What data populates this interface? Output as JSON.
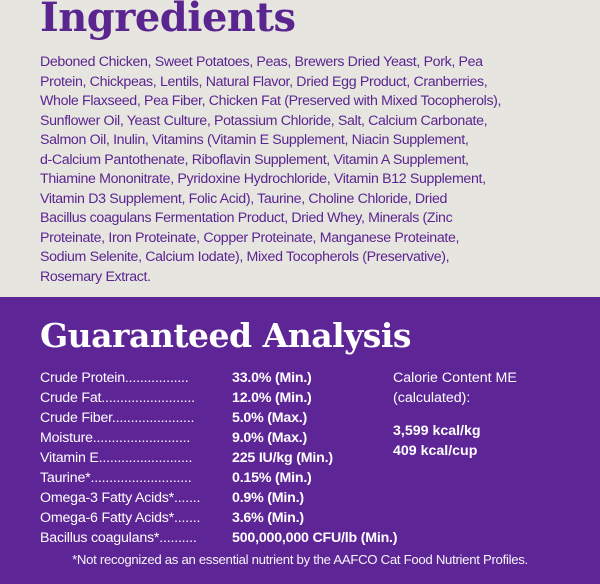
{
  "ingredients": {
    "title": "Ingredients",
    "lines": [
      "Deboned Chicken, Sweet Potatoes, Peas, Brewers Dried Yeast, Pork, Pea",
      "Protein, Chickpeas, Lentils, Natural Flavor, Dried Egg Product, Cranberries,",
      "Whole Flaxseed, Pea Fiber, Chicken Fat (Preserved with Mixed Tocopherols),",
      "Sunflower Oil, Yeast Culture, Potassium Chloride, Salt, Calcium Carbonate,",
      "Salmon Oil, Inulin, Vitamins (Vitamin E Supplement, Niacin Supplement,",
      "d-Calcium Pantothenate, Riboflavin Supplement, Vitamin A Supplement,",
      "Thiamine Mononitrate, Pyridoxine Hydrochloride, Vitamin B12 Supplement,",
      "Vitamin D3 Supplement, Folic Acid), Taurine, Choline Chloride, Dried",
      "Bacillus coagulans Fermentation Product, Dried Whey, Minerals (Zinc",
      "Proteinate, Iron Proteinate, Copper Proteinate, Manganese Proteinate,",
      "Sodium Selenite, Calcium Iodate), Mixed Tocopherols (Preservative),",
      "Rosemary Extract."
    ]
  },
  "analysis": {
    "title": "Guaranteed Analysis",
    "rows": [
      {
        "label": "Crude  Protein.................",
        "value": "33.0% (Min.)"
      },
      {
        "label": "Crude  Fat.........................",
        "value": "12.0% (Min.)"
      },
      {
        "label": "Crude  Fiber......................",
        "value": "5.0% (Max.)"
      },
      {
        "label": "Moisture..........................",
        "value": "9.0% (Max.)"
      },
      {
        "label": "Vitamin  E.........................",
        "value": "225 IU/kg (Min.)"
      },
      {
        "label": "Taurine*...........................",
        "value": "0.15% (Min.)"
      },
      {
        "label": "Omega-3 Fatty Acids*.......",
        "value": "0.9% (Min.)"
      },
      {
        "label": "Omega-6 Fatty Acids*.......",
        "value": "3.6% (Min.)"
      },
      {
        "label": "Bacillus  coagulans*..........",
        "value": "500,000,000 CFU/lb (Min.)"
      }
    ],
    "calorie": {
      "heading_1": "Calorie Content ME",
      "heading_2": "(calculated):",
      "per_kg": "3,599 kcal/kg",
      "per_cup": "409 kcal/cup"
    },
    "footnote": "*Not recognized as an essential nutrient by the AAFCO Cat Food Nutrient Profiles."
  },
  "colors": {
    "purple": "#5e2597",
    "background": "#e7e5e0"
  }
}
